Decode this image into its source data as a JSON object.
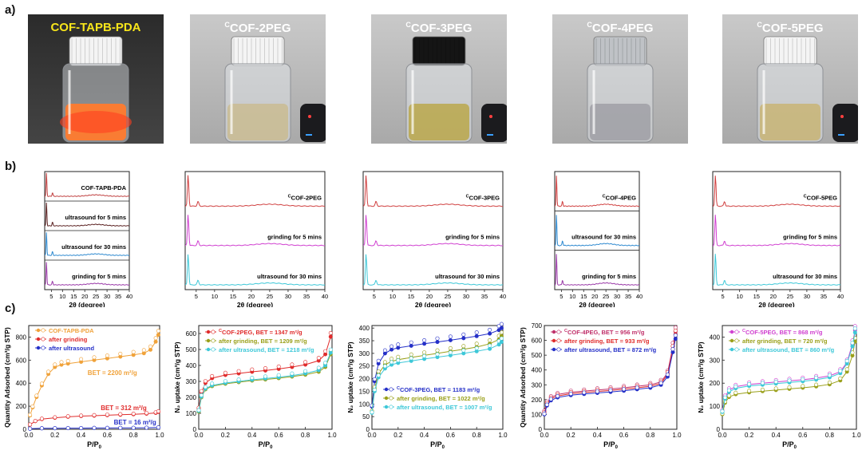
{
  "panel_a": {
    "letter": "a)",
    "photos": [
      {
        "title_sup": "",
        "title": "COF-TAPB-PDA",
        "title_color": "#f7e51b",
        "cap": "white",
        "liquid": "#ff7b2e",
        "glow": true,
        "reader": false
      },
      {
        "title_sup": "C",
        "title": "COF-2PEG",
        "title_color": "#ffffff",
        "cap": "white",
        "liquid": "#c9b98a",
        "glow": false,
        "reader": true
      },
      {
        "title_sup": "C",
        "title": "COF-3PEG",
        "title_color": "#ffffff",
        "cap": "black",
        "liquid": "#b8a33a",
        "glow": false,
        "reader": true
      },
      {
        "title_sup": "C",
        "title": "COF-4PEG",
        "title_color": "#ffffff",
        "cap": "clear",
        "liquid": "#9a9aa0",
        "glow": false,
        "reader": false
      },
      {
        "title_sup": "C",
        "title": "COF-5PEG",
        "title_color": "#ffffff",
        "cap": "white",
        "liquid": "#c8b26a",
        "glow": false,
        "reader": true
      }
    ]
  },
  "panel_b": {
    "letter": "b)",
    "xlabel": "2θ (degree)",
    "xticks": [
      5,
      10,
      15,
      20,
      25,
      30,
      35,
      40
    ],
    "xlim": [
      2,
      40
    ],
    "plots": [
      {
        "labels": [
          "COF-TAPB-PDA",
          "ultrasound for 5 mins",
          "ultrasound for 30 mins",
          "grinding for 5 mins"
        ],
        "sup": [
          false,
          false,
          false,
          false
        ],
        "stacked": true
      },
      {
        "labels": [
          "COF-2PEG",
          "grinding for 5 mins",
          "ultrasound for 30 mins"
        ],
        "sup": [
          true,
          false,
          false
        ],
        "stacked": false
      },
      {
        "labels": [
          "COF-3PEG",
          "grinding for 5 mins",
          "ultrasound for 30 mins"
        ],
        "sup": [
          true,
          false,
          false
        ],
        "stacked": false
      },
      {
        "labels": [
          "COF-4PEG",
          "ultrasound for 30 mins",
          "grinding for 5 mins"
        ],
        "sup": [
          true,
          false,
          false
        ],
        "stacked": true
      },
      {
        "labels": [
          "COF-5PEG",
          "grinding for 5 mins",
          "ultrasound for 30 mins"
        ],
        "sup": [
          true,
          false,
          false
        ],
        "stacked": false
      }
    ]
  },
  "panel_c": {
    "letter": "c)",
    "xlabel": "P/P",
    "xlabel_sub": "0",
    "xticks": [
      "0.0",
      "0.2",
      "0.4",
      "0.6",
      "0.8",
      "1.0"
    ]
  },
  "chart_data": [
    {
      "type": "scatter",
      "title": "",
      "xlabel": "P/P0",
      "ylabel": "Quantity Adsorbed (cm3/g STP)",
      "xlim": [
        0,
        1
      ],
      "ylim": [
        0,
        900
      ],
      "yticks": [
        0,
        200,
        400,
        600,
        800
      ],
      "legend": "top-left",
      "series": [
        {
          "name": "COF-TAPB-PDA",
          "color": "#f0a23a",
          "x": [
            0.01,
            0.03,
            0.06,
            0.1,
            0.15,
            0.2,
            0.25,
            0.3,
            0.4,
            0.5,
            0.6,
            0.7,
            0.8,
            0.88,
            0.93,
            0.97,
            0.99
          ],
          "y": [
            120,
            190,
            280,
            380,
            480,
            540,
            560,
            570,
            585,
            600,
            615,
            630,
            645,
            660,
            690,
            760,
            820
          ]
        },
        {
          "name": "after grinding",
          "color": "#e02c2c",
          "x": [
            0.01,
            0.05,
            0.1,
            0.2,
            0.3,
            0.4,
            0.5,
            0.6,
            0.7,
            0.8,
            0.9,
            0.97,
            0.99
          ],
          "y": [
            40,
            70,
            88,
            100,
            108,
            114,
            118,
            122,
            126,
            130,
            135,
            142,
            150
          ]
        },
        {
          "name": "after ultrasound",
          "color": "#2530c8",
          "x": [
            0.01,
            0.1,
            0.2,
            0.3,
            0.4,
            0.5,
            0.6,
            0.7,
            0.8,
            0.9,
            0.99
          ],
          "y": [
            5,
            8,
            9,
            10,
            10,
            11,
            11,
            12,
            12,
            13,
            15
          ]
        }
      ],
      "annotations": [
        {
          "text": "BET = 2200 m²/g",
          "color": "#f0a23a"
        },
        {
          "text": "BET = 312 m²/g",
          "color": "#e02c2c"
        },
        {
          "text": "BET = 16 m²/g",
          "color": "#2530c8"
        }
      ]
    },
    {
      "type": "scatter",
      "xlabel": "P/P0",
      "ylabel": "N2 uptake (cm3/g STP)",
      "xlim": [
        0,
        1
      ],
      "ylim": [
        0,
        650
      ],
      "yticks": [
        0,
        100,
        200,
        300,
        400,
        500,
        600
      ],
      "legend": "top-left",
      "series": [
        {
          "name": "COF-2PEG, BET = 1347 m²/g",
          "sup": "C",
          "color": "#e02c2c",
          "x": [
            0.0,
            0.02,
            0.05,
            0.1,
            0.2,
            0.3,
            0.4,
            0.5,
            0.6,
            0.7,
            0.8,
            0.9,
            0.95,
            0.99
          ],
          "y": [
            130,
            230,
            290,
            320,
            340,
            350,
            360,
            368,
            378,
            390,
            405,
            430,
            470,
            580
          ]
        },
        {
          "name": "after grinding, BET = 1209 m²/g",
          "color": "#9aa01a",
          "x": [
            0.0,
            0.02,
            0.05,
            0.1,
            0.2,
            0.3,
            0.4,
            0.5,
            0.6,
            0.7,
            0.8,
            0.9,
            0.95,
            0.99
          ],
          "y": [
            110,
            200,
            250,
            270,
            285,
            295,
            305,
            312,
            320,
            330,
            342,
            360,
            390,
            470
          ]
        },
        {
          "name": "after ultrasound, BET = 1218 m²/g",
          "color": "#3ec8d8",
          "x": [
            0.0,
            0.02,
            0.05,
            0.1,
            0.2,
            0.3,
            0.4,
            0.5,
            0.6,
            0.7,
            0.8,
            0.9,
            0.95,
            0.99
          ],
          "y": [
            115,
            205,
            255,
            275,
            290,
            300,
            310,
            318,
            326,
            336,
            350,
            370,
            400,
            480
          ]
        }
      ]
    },
    {
      "type": "scatter",
      "xlabel": "P/P0",
      "ylabel": "N2 uptake (cm3/g STP)",
      "xlim": [
        0,
        1
      ],
      "ylim": [
        0,
        410
      ],
      "yticks": [
        0,
        50,
        100,
        150,
        200,
        250,
        300,
        350,
        400
      ],
      "legend": "bottom-right",
      "series": [
        {
          "name": "COF-3PEG, BET = 1183 m²/g",
          "sup": "C",
          "color": "#2530c8",
          "x": [
            0.0,
            0.02,
            0.05,
            0.1,
            0.15,
            0.2,
            0.3,
            0.4,
            0.5,
            0.6,
            0.7,
            0.8,
            0.9,
            0.97,
            0.99
          ],
          "y": [
            90,
            190,
            260,
            300,
            315,
            322,
            330,
            338,
            345,
            352,
            360,
            368,
            378,
            392,
            400
          ]
        },
        {
          "name": "after grinding, BET = 1022 m²/g",
          "color": "#9aa01a",
          "x": [
            0.0,
            0.02,
            0.05,
            0.1,
            0.15,
            0.2,
            0.3,
            0.4,
            0.5,
            0.6,
            0.7,
            0.8,
            0.9,
            0.97,
            0.99
          ],
          "y": [
            70,
            160,
            220,
            255,
            268,
            275,
            284,
            292,
            300,
            308,
            316,
            325,
            338,
            355,
            368
          ]
        },
        {
          "name": "after ultrasound, BET = 1007 m²/g",
          "color": "#3ec8d8",
          "x": [
            0.0,
            0.02,
            0.05,
            0.1,
            0.15,
            0.2,
            0.3,
            0.4,
            0.5,
            0.6,
            0.7,
            0.8,
            0.9,
            0.97,
            0.99
          ],
          "y": [
            65,
            150,
            205,
            240,
            255,
            262,
            270,
            278,
            285,
            292,
            300,
            308,
            318,
            335,
            345
          ]
        }
      ]
    },
    {
      "type": "scatter",
      "xlabel": "P/P0",
      "ylabel": "Quantity Adsorbed (cm3/g STP)",
      "xlim": [
        0,
        1
      ],
      "ylim": [
        0,
        700
      ],
      "yticks": [
        0,
        100,
        200,
        300,
        400,
        500,
        600,
        700
      ],
      "legend": "top-left",
      "series": [
        {
          "name": "COF-4PEG, BET = 956 m²/g",
          "sup": "C",
          "color": "#c0306a",
          "x": [
            0.0,
            0.02,
            0.05,
            0.1,
            0.2,
            0.3,
            0.4,
            0.5,
            0.6,
            0.7,
            0.8,
            0.88,
            0.93,
            0.97,
            0.99
          ],
          "y": [
            120,
            180,
            215,
            235,
            250,
            258,
            265,
            272,
            280,
            290,
            300,
            320,
            380,
            560,
            660
          ]
        },
        {
          "name": "after grinding, BET = 933 m²/g",
          "color": "#e02c2c",
          "x": [
            0.0,
            0.02,
            0.05,
            0.1,
            0.2,
            0.3,
            0.4,
            0.5,
            0.6,
            0.7,
            0.8,
            0.88,
            0.93,
            0.97,
            0.99
          ],
          "y": [
            110,
            170,
            205,
            225,
            240,
            248,
            255,
            262,
            270,
            280,
            290,
            310,
            370,
            540,
            640
          ]
        },
        {
          "name": "after ultrasound, BET = 872 m²/g",
          "color": "#2530c8",
          "x": [
            0.0,
            0.02,
            0.05,
            0.1,
            0.2,
            0.3,
            0.4,
            0.5,
            0.6,
            0.7,
            0.8,
            0.88,
            0.93,
            0.97,
            0.99
          ],
          "y": [
            100,
            160,
            195,
            215,
            230,
            238,
            245,
            252,
            260,
            270,
            280,
            300,
            355,
            520,
            610
          ]
        }
      ]
    },
    {
      "type": "scatter",
      "xlabel": "P/P0",
      "ylabel": "N2 uptake (cm3/g STP)",
      "xlim": [
        0,
        1
      ],
      "ylim": [
        0,
        450
      ],
      "yticks": [
        0,
        100,
        200,
        300,
        400
      ],
      "legend": "top-left",
      "series": [
        {
          "name": "COF-5PEG, BET = 868 m²/g",
          "sup": "C",
          "color": "#d040d0",
          "x": [
            0.0,
            0.02,
            0.05,
            0.1,
            0.2,
            0.3,
            0.4,
            0.5,
            0.6,
            0.7,
            0.8,
            0.88,
            0.93,
            0.97,
            0.99
          ],
          "y": [
            80,
            140,
            170,
            185,
            195,
            200,
            205,
            210,
            215,
            222,
            232,
            250,
            290,
            370,
            430
          ]
        },
        {
          "name": "after grinding, BET = 720 m²/g",
          "color": "#9aa01a",
          "x": [
            0.0,
            0.02,
            0.05,
            0.1,
            0.2,
            0.3,
            0.4,
            0.5,
            0.6,
            0.7,
            0.8,
            0.88,
            0.93,
            0.97,
            0.99
          ],
          "y": [
            65,
            115,
            140,
            152,
            160,
            165,
            170,
            175,
            180,
            186,
            195,
            212,
            250,
            320,
            380
          ]
        },
        {
          "name": "after ultrasound, BET = 860 m²/g",
          "color": "#3ec8d8",
          "x": [
            0.0,
            0.02,
            0.05,
            0.1,
            0.2,
            0.3,
            0.4,
            0.5,
            0.6,
            0.7,
            0.8,
            0.88,
            0.93,
            0.97,
            0.99
          ],
          "y": [
            75,
            132,
            162,
            178,
            188,
            193,
            198,
            203,
            208,
            215,
            225,
            243,
            285,
            360,
            420
          ]
        }
      ]
    }
  ]
}
